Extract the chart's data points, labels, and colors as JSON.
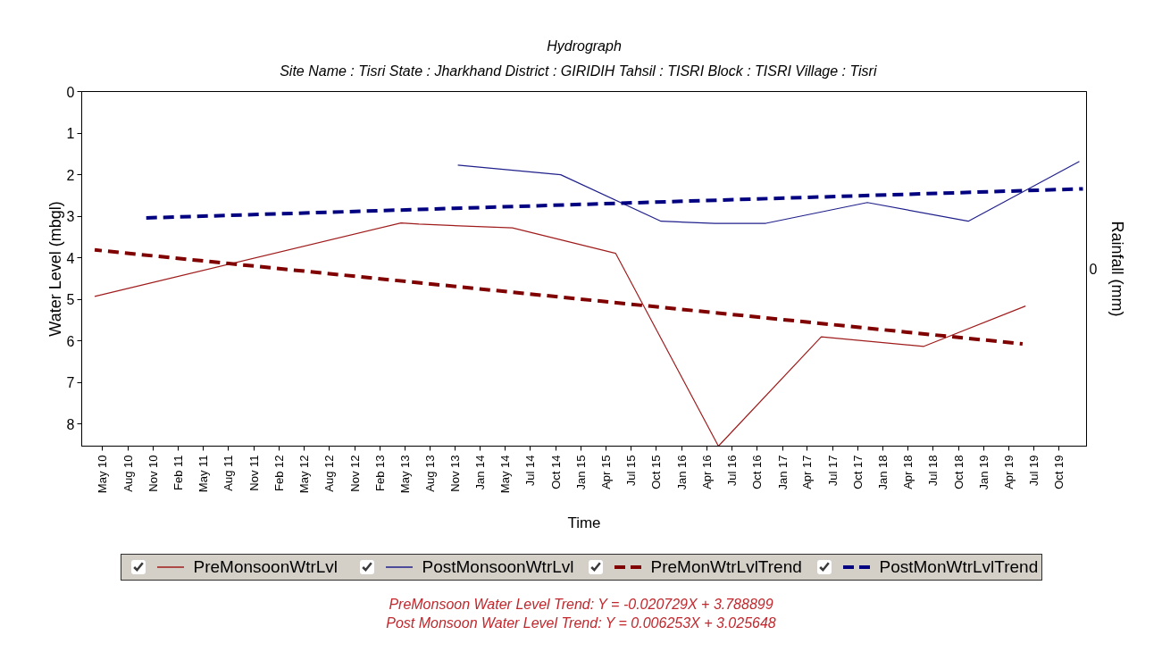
{
  "chart_data": {
    "type": "line",
    "title": "Hydrograph",
    "subtitle": "Site Name : Tisri  State : Jharkhand District : GIRIDIH  Tahsil : TISRI  Block : TISRI Village : Tisri",
    "xlabel": "Time",
    "ylabel": "Water Level (mbgl)",
    "y2label": "Rainfall (mm)",
    "annotations": [
      "0",
      "PreMonsoon Water Level Trend: Y = -0.020729X + 3.788899",
      "Post Monsoon Water Level Trend: Y = 0.006253X + 3.025648"
    ],
    "xlim": [
      "2010-02-15",
      "2020-02-07"
    ],
    "xticks": [
      {
        "value": "2010-05",
        "label": "May 10"
      },
      {
        "value": "2010-08",
        "label": "Aug 10"
      },
      {
        "value": "2010-11",
        "label": "Nov 10"
      },
      {
        "value": "2011-02",
        "label": "Feb 11"
      },
      {
        "value": "2011-05",
        "label": "May 11"
      },
      {
        "value": "2011-08",
        "label": "Aug 11"
      },
      {
        "value": "2011-11",
        "label": "Nov 11"
      },
      {
        "value": "2012-02",
        "label": "Feb 12"
      },
      {
        "value": "2012-05",
        "label": "May 12"
      },
      {
        "value": "2012-08",
        "label": "Aug 12"
      },
      {
        "value": "2012-11",
        "label": "Nov 12"
      },
      {
        "value": "2013-02",
        "label": "Feb 13"
      },
      {
        "value": "2013-05",
        "label": "May 13"
      },
      {
        "value": "2013-08",
        "label": "Aug 13"
      },
      {
        "value": "2013-11",
        "label": "Nov 13"
      },
      {
        "value": "2014-01-31",
        "label": "Jan 14"
      },
      {
        "value": "2014-05",
        "label": "May 14"
      },
      {
        "value": "2014-07-31",
        "label": "Jul 14"
      },
      {
        "value": "2014-10-31",
        "label": "Oct 14"
      },
      {
        "value": "2015-01-31",
        "label": "Jan 15"
      },
      {
        "value": "2015-04-30",
        "label": "Apr 15"
      },
      {
        "value": "2015-07-31",
        "label": "Jul 15"
      },
      {
        "value": "2015-10-31",
        "label": "Oct 15"
      },
      {
        "value": "2016-01-31",
        "label": "Jan 16"
      },
      {
        "value": "2016-04-30",
        "label": "Apr 16"
      },
      {
        "value": "2016-07-31",
        "label": "Jul 16"
      },
      {
        "value": "2016-10-31",
        "label": "Oct 16"
      },
      {
        "value": "2017-01-31",
        "label": "Jan 17"
      },
      {
        "value": "2017-04-30",
        "label": "Apr 17"
      },
      {
        "value": "2017-07-31",
        "label": "Jul 17"
      },
      {
        "value": "2017-10-31",
        "label": "Oct 17"
      },
      {
        "value": "2018-01-31",
        "label": "Jan 18"
      },
      {
        "value": "2018-04-30",
        "label": "Apr 18"
      },
      {
        "value": "2018-07-31",
        "label": "Jul 18"
      },
      {
        "value": "2018-10-31",
        "label": "Oct 18"
      },
      {
        "value": "2019-01-31",
        "label": "Jan 19"
      },
      {
        "value": "2019-04-30",
        "label": "Apr 19"
      },
      {
        "value": "2019-07-31",
        "label": "Jul 19"
      },
      {
        "value": "2019-10-31",
        "label": "Oct 19"
      }
    ],
    "ylim": [
      8.53,
      0
    ],
    "yticks": [
      0,
      1,
      2,
      3,
      4,
      5,
      6,
      7,
      8
    ],
    "legend": "bottom",
    "series": [
      {
        "name": "PreMonsoonWtrLvl",
        "color": "#a01c1c",
        "line_style": "solid",
        "x": [
          "2010-04-03",
          "2013-04-18",
          "2013-06-22",
          "2014-05-27",
          "2015-06-05",
          "2016-06-12",
          "2017-06-20",
          "2018-06-27",
          "2019-07-01"
        ],
        "values": [
          4.93,
          3.16,
          3.19,
          3.28,
          3.89,
          8.53,
          5.9,
          6.13,
          5.16
        ]
      },
      {
        "name": "PostMonsoonWtrLvl",
        "color": "#20208c",
        "line_style": "solid",
        "x": [
          "2013-11-10",
          "2014-11-18",
          "2015-11-17",
          "2016-05-30",
          "2016-12-01",
          "2017-12-04",
          "2018-12-05",
          "2020-01-12"
        ],
        "values": [
          1.77,
          2.0,
          3.12,
          3.17,
          3.17,
          2.67,
          3.12,
          1.68
        ]
      },
      {
        "name": "PreMonWtrLvlTrend",
        "color": "#800000",
        "line_style": "dashed",
        "x": [
          "2010-04-03",
          "2019-06-20"
        ],
        "values": [
          3.81,
          6.07
        ]
      },
      {
        "name": "PostMonWtrLvlTrend",
        "color": "#000080",
        "line_style": "dashed",
        "x": [
          "2010-10-07",
          "2020-01-25"
        ],
        "values": [
          3.04,
          2.34
        ]
      }
    ]
  }
}
